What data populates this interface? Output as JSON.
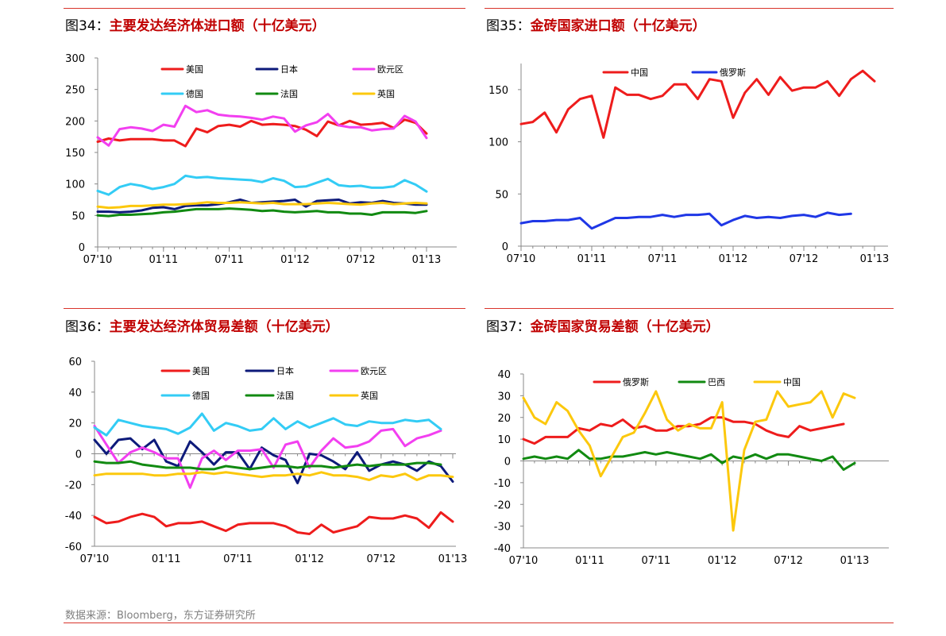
{
  "source": "数据来源：Bloomberg，东方证券研究所",
  "colors": {
    "red": "#ee1c1c",
    "navy": "#0d1a7a",
    "magenta": "#f23ff0",
    "cyan": "#33ccf5",
    "green": "#118a11",
    "yellow": "#fcc80d",
    "blue": "#1f37e6",
    "rule": "#d9342b"
  },
  "panels": [
    {
      "fig_label": "图34：",
      "title": "主要发达经济体进口额（十亿美元）"
    },
    {
      "fig_label": "图35：",
      "title": "金砖国家进口额（十亿美元）"
    },
    {
      "fig_label": "图36：",
      "title": "主要发达经济体贸易差额（十亿美元）"
    },
    {
      "fig_label": "图37：",
      "title": "金砖国家贸易差额（十亿美元）"
    }
  ],
  "chart_data": [
    {
      "type": "line",
      "x_tick_labels": [
        "07'10",
        "01'11",
        "07'11",
        "01'12",
        "07'12",
        "01'13"
      ],
      "x_start": "2010-07",
      "x_end": "2013-01",
      "ylim": [
        0,
        300
      ],
      "yticks": [
        0,
        50,
        100,
        150,
        200,
        250,
        300
      ],
      "legend": "top, 3 columns",
      "grid": false,
      "series": [
        {
          "name": "美国",
          "color": "#ee1c1c",
          "values": [
            167,
            172,
            169,
            171,
            171,
            171,
            169,
            169,
            160,
            188,
            182,
            192,
            194,
            191,
            200,
            194,
            195,
            194,
            192,
            186,
            176,
            199,
            193,
            200,
            194,
            195,
            197,
            189,
            202,
            197,
            180
          ]
        },
        {
          "name": "日本",
          "color": "#0d1a7a",
          "values": [
            56,
            56,
            55,
            56,
            58,
            62,
            63,
            60,
            65,
            66,
            66,
            68,
            71,
            75,
            70,
            71,
            72,
            73,
            75,
            64,
            73,
            74,
            75,
            69,
            71,
            70,
            73,
            70,
            69,
            67,
            67
          ]
        },
        {
          "name": "欧元区",
          "color": "#f23ff0",
          "values": [
            174,
            161,
            187,
            190,
            188,
            184,
            194,
            191,
            224,
            214,
            217,
            210,
            208,
            207,
            205,
            202,
            207,
            204,
            183,
            193,
            198,
            211,
            193,
            190,
            190,
            185,
            187,
            188,
            208,
            199,
            173
          ]
        },
        {
          "name": "德国",
          "color": "#33ccf5",
          "values": [
            89,
            83,
            95,
            100,
            97,
            92,
            95,
            100,
            113,
            110,
            111,
            109,
            108,
            107,
            106,
            103,
            109,
            105,
            95,
            96,
            102,
            108,
            98,
            96,
            97,
            94,
            94,
            96,
            106,
            99,
            88
          ]
        },
        {
          "name": "法国",
          "color": "#118a11",
          "values": [
            50,
            49,
            51,
            51,
            52,
            53,
            55,
            56,
            58,
            60,
            60,
            60,
            61,
            60,
            59,
            57,
            58,
            56,
            55,
            56,
            57,
            55,
            55,
            53,
            53,
            51,
            55,
            55,
            55,
            54,
            57
          ]
        },
        {
          "name": "英国",
          "color": "#fcc80d",
          "values": [
            64,
            62,
            63,
            65,
            65,
            66,
            67,
            67,
            68,
            69,
            71,
            70,
            70,
            71,
            70,
            69,
            70,
            68,
            68,
            68,
            69,
            70,
            69,
            68,
            67,
            69,
            70,
            68,
            69,
            70,
            69
          ]
        }
      ]
    },
    {
      "type": "line",
      "x_tick_labels": [
        "07'10",
        "01'11",
        "07'11",
        "01'12",
        "07'12",
        "01'13"
      ],
      "x_start": "2010-07",
      "x_end": "2013-01",
      "ylim": [
        0,
        175
      ],
      "yticks": [
        0,
        50,
        100,
        150
      ],
      "legend": "top-left",
      "grid": false,
      "series": [
        {
          "name": "中国",
          "color": "#ee1c1c",
          "values": [
            117,
            119,
            128,
            109,
            131,
            141,
            144,
            104,
            152,
            145,
            145,
            141,
            144,
            155,
            155,
            141,
            160,
            158,
            123,
            147,
            160,
            145,
            162,
            149,
            152,
            152,
            158,
            144,
            160,
            168,
            158
          ]
        },
        {
          "name": "俄罗斯",
          "color": "#1f37e6",
          "values": [
            22,
            24,
            24,
            25,
            25,
            27,
            17,
            22,
            27,
            27,
            28,
            28,
            30,
            28,
            30,
            30,
            31,
            20,
            25,
            29,
            27,
            28,
            27,
            29,
            30,
            28,
            32,
            30,
            31
          ]
        }
      ]
    },
    {
      "type": "line",
      "x_tick_labels": [
        "07'10",
        "01'11",
        "07'11",
        "01'12",
        "07'12",
        "01'13"
      ],
      "x_start": "2010-07",
      "x_end": "2013-01",
      "ylim": [
        -60,
        60
      ],
      "yticks": [
        -60,
        -40,
        -20,
        0,
        20,
        40,
        60
      ],
      "legend": "top, 3 columns",
      "grid": false,
      "series": [
        {
          "name": "美国",
          "color": "#ee1c1c",
          "values": [
            -41,
            -45,
            -44,
            -41,
            -39,
            -41,
            -47,
            -45,
            -45,
            -44,
            -47,
            -50,
            -46,
            -45,
            -45,
            -45,
            -47,
            -51,
            -52,
            -46,
            -51,
            -49,
            -47,
            -41,
            -42,
            -42,
            -40,
            -42,
            -48,
            -38,
            -44
          ]
        },
        {
          "name": "日本",
          "color": "#0d1a7a",
          "values": [
            9,
            0,
            9,
            10,
            3,
            9,
            -5,
            -8,
            8,
            1,
            -7,
            1,
            1,
            -10,
            4,
            -1,
            -4,
            -19,
            0,
            -1,
            -5,
            -10,
            1,
            -11,
            -7,
            -5,
            -7,
            -11,
            -5,
            -8,
            -18
          ]
        },
        {
          "name": "欧元区",
          "color": "#f23ff0",
          "values": [
            18,
            6,
            -6,
            1,
            4,
            1,
            -3,
            -3,
            -22,
            -3,
            2,
            -4,
            2,
            2,
            3,
            -9,
            6,
            8,
            -9,
            2,
            10,
            4,
            5,
            8,
            15,
            16,
            5,
            10,
            12,
            15
          ]
        },
        {
          "name": "德国",
          "color": "#33ccf5",
          "values": [
            17,
            12,
            22,
            20,
            18,
            17,
            16,
            13,
            17,
            26,
            15,
            20,
            18,
            15,
            16,
            23,
            16,
            21,
            17,
            20,
            23,
            19,
            18,
            21,
            20,
            20,
            22,
            21,
            22,
            16
          ]
        },
        {
          "name": "法国",
          "color": "#118a11",
          "values": [
            -5,
            -6,
            -6,
            -5,
            -7,
            -8,
            -9,
            -9,
            -9,
            -10,
            -10,
            -8,
            -9,
            -10,
            -9,
            -8,
            -8,
            -9,
            -8,
            -8,
            -9,
            -8,
            -7,
            -8,
            -7,
            -7,
            -7,
            -6,
            -6,
            -7
          ]
        },
        {
          "name": "英国",
          "color": "#fcc80d",
          "values": [
            -14,
            -13,
            -13,
            -13,
            -13,
            -14,
            -14,
            -13,
            -13,
            -12,
            -13,
            -12,
            -13,
            -14,
            -15,
            -14,
            -14,
            -13,
            -14,
            -12,
            -14,
            -14,
            -15,
            -17,
            -14,
            -15,
            -13,
            -17,
            -14,
            -14,
            -15
          ]
        }
      ]
    },
    {
      "type": "line",
      "x_tick_labels": [
        "07'10",
        "01'11",
        "07'11",
        "01'12",
        "07'12",
        "01'13"
      ],
      "x_start": "2010-07",
      "x_end": "2013-01",
      "ylim": [
        -40,
        40
      ],
      "yticks": [
        -40,
        -30,
        -20,
        -10,
        0,
        10,
        20,
        30,
        40
      ],
      "legend": "top, 3 columns",
      "grid": false,
      "series": [
        {
          "name": "俄罗斯",
          "color": "#ee1c1c",
          "values": [
            10,
            8,
            11,
            11,
            11,
            15,
            14,
            17,
            16,
            19,
            15,
            16,
            14,
            14,
            16,
            16,
            17,
            20,
            20,
            18,
            18,
            17,
            14,
            12,
            11,
            16,
            14,
            15,
            16,
            17
          ]
        },
        {
          "name": "巴西",
          "color": "#118a11",
          "values": [
            1,
            2,
            1,
            2,
            1,
            5,
            1,
            1,
            2,
            2,
            3,
            4,
            3,
            4,
            3,
            2,
            1,
            3,
            -1,
            2,
            1,
            3,
            1,
            3,
            3,
            2,
            1,
            0,
            2,
            -4,
            -1
          ]
        },
        {
          "name": "中国",
          "color": "#fcc80d",
          "values": [
            29,
            20,
            17,
            27,
            23,
            14,
            7,
            -7,
            2,
            11,
            13,
            22,
            32,
            19,
            14,
            17,
            15,
            15,
            27,
            -32,
            5,
            18,
            19,
            32,
            25,
            26,
            27,
            32,
            20,
            31,
            29
          ]
        }
      ]
    }
  ]
}
